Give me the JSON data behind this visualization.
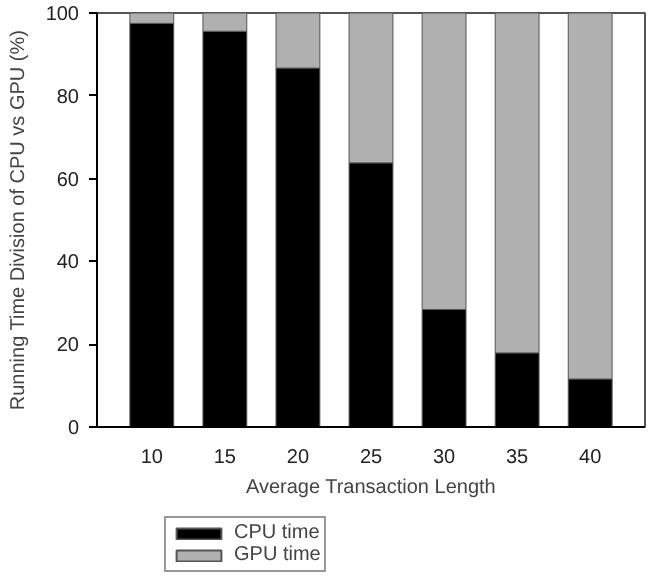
{
  "chart_data": {
    "type": "bar",
    "stacked": true,
    "xlabel": "Average Transaction Length",
    "ylabel": "Running Time Division of CPU vs GPU (%)",
    "categories": [
      "10",
      "15",
      "20",
      "25",
      "30",
      "35",
      "40"
    ],
    "series": [
      {
        "name": "CPU time",
        "color": "#000000",
        "values": [
          97.5,
          95.6,
          86.7,
          63.8,
          28.4,
          17.9,
          11.6
        ]
      },
      {
        "name": "GPU time",
        "color": "#b0b0b0",
        "values": [
          2.5,
          4.4,
          13.3,
          36.2,
          71.6,
          82.1,
          88.4
        ]
      }
    ],
    "ylim": [
      0,
      100
    ],
    "yticks": [
      0,
      20,
      40,
      60,
      80,
      100
    ],
    "legend": "bottom left",
    "grid": false
  }
}
